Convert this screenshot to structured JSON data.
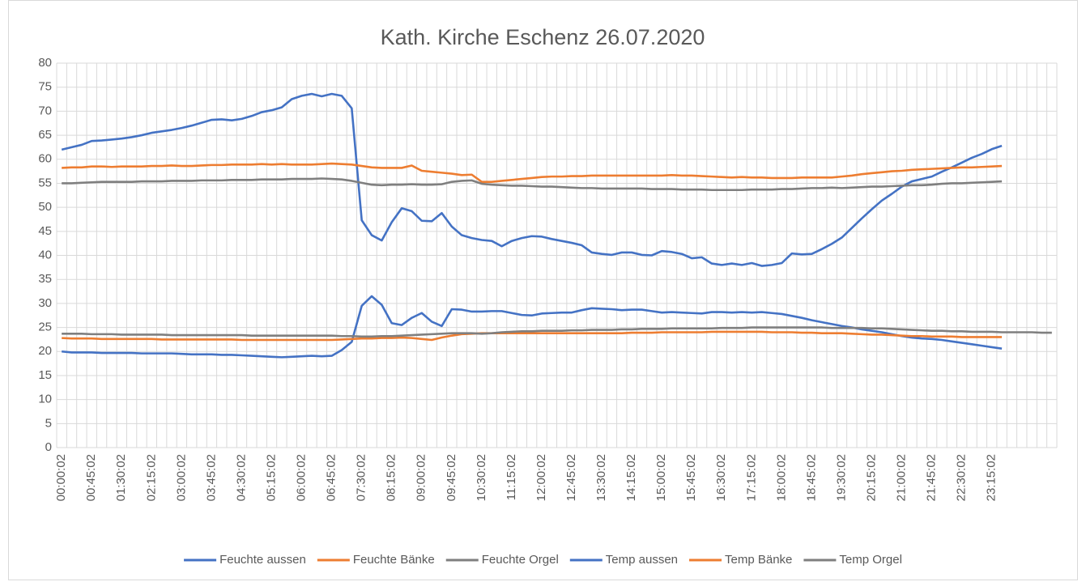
{
  "chart_data": {
    "type": "line",
    "title": "Kath. Kirche Eschenz 26.07.2020",
    "categories": [
      "00:00:02",
      null,
      null,
      "00:45:02",
      null,
      null,
      "01:30:02",
      null,
      null,
      "02:15:02",
      null,
      null,
      "03:00:02",
      null,
      null,
      "03:45:02",
      null,
      null,
      "04:30:02",
      null,
      null,
      "05:15:02",
      null,
      null,
      "06:00:02",
      null,
      null,
      "06:45:02",
      null,
      null,
      "07:30:02",
      null,
      null,
      "08:15:02",
      null,
      null,
      "09:00:02",
      null,
      null,
      "09:45:02",
      null,
      null,
      "10:30:02",
      null,
      null,
      "11:15:02",
      null,
      null,
      "12:00:02",
      null,
      null,
      "12:45:02",
      null,
      null,
      "13:30:02",
      null,
      null,
      "14:15:02",
      null,
      null,
      "15:00:02",
      null,
      null,
      "15:45:02",
      null,
      null,
      "16:30:02",
      null,
      null,
      "17:15:02",
      null,
      null,
      "18:00:02",
      null,
      null,
      "18:45:02",
      null,
      null,
      "19:30:02",
      null,
      null,
      "20:15:02",
      null,
      null,
      "21:00:02",
      null,
      null,
      "21:45:02",
      null,
      null,
      "22:30:02",
      null,
      null,
      "23:15:02",
      null,
      null,
      null,
      null,
      null,
      null
    ],
    "ylim": [
      0,
      80
    ],
    "yticks": [
      0,
      5,
      10,
      15,
      20,
      25,
      30,
      35,
      40,
      45,
      50,
      55,
      60,
      65,
      70,
      75,
      80
    ],
    "grid": true,
    "legend": "bottom",
    "series": [
      {
        "name": "Feuchte aussen",
        "color": "#4472c4",
        "values": [
          62.0,
          62.5,
          63.0,
          63.8,
          63.9,
          64.1,
          64.3,
          64.6,
          65.0,
          65.5,
          65.8,
          66.1,
          66.5,
          67.0,
          67.6,
          68.2,
          68.3,
          68.1,
          68.4,
          69.0,
          69.8,
          70.2,
          70.8,
          72.5,
          73.2,
          73.6,
          73.1,
          73.6,
          73.2,
          70.6,
          47.3,
          44.2,
          43.1,
          46.9,
          49.8,
          49.2,
          47.2,
          47.1,
          48.8,
          46.0,
          44.2,
          43.6,
          43.2,
          43.0,
          41.9,
          43.0,
          43.6,
          44.0,
          43.9,
          43.4,
          43.0,
          42.6,
          42.1,
          40.6,
          40.3,
          40.1,
          40.6,
          40.6,
          40.1,
          40.0,
          40.9,
          40.7,
          40.3,
          39.4,
          39.6,
          38.3,
          38.0,
          38.3,
          38.0,
          38.4,
          37.8,
          38.0,
          38.4,
          40.4,
          40.2,
          40.3,
          41.3,
          42.4,
          43.7,
          45.7,
          47.7,
          49.6,
          51.4,
          52.8,
          54.3,
          55.4,
          55.9,
          56.4,
          57.4,
          58.3,
          59.3,
          60.3,
          61.1,
          62.1,
          62.8,
          null,
          null,
          null,
          null,
          null
        ]
      },
      {
        "name": "Feuchte Bänke",
        "color": "#ed7d31",
        "values": [
          58.2,
          58.3,
          58.3,
          58.5,
          58.5,
          58.4,
          58.5,
          58.5,
          58.5,
          58.6,
          58.6,
          58.7,
          58.6,
          58.6,
          58.7,
          58.8,
          58.8,
          58.9,
          58.9,
          58.9,
          59.0,
          58.9,
          59.0,
          58.9,
          58.9,
          58.9,
          59.0,
          59.1,
          59.0,
          58.9,
          58.6,
          58.3,
          58.2,
          58.2,
          58.2,
          58.7,
          57.6,
          57.4,
          57.2,
          57.0,
          56.7,
          56.8,
          55.3,
          55.3,
          55.5,
          55.7,
          55.9,
          56.1,
          56.3,
          56.4,
          56.4,
          56.5,
          56.5,
          56.6,
          56.6,
          56.6,
          56.6,
          56.6,
          56.6,
          56.6,
          56.6,
          56.7,
          56.6,
          56.6,
          56.5,
          56.4,
          56.3,
          56.2,
          56.3,
          56.2,
          56.2,
          56.1,
          56.1,
          56.1,
          56.2,
          56.2,
          56.2,
          56.2,
          56.4,
          56.6,
          56.9,
          57.1,
          57.3,
          57.5,
          57.6,
          57.8,
          57.9,
          58.0,
          58.1,
          58.2,
          58.3,
          58.3,
          58.4,
          58.5,
          58.6,
          null,
          null,
          null,
          null,
          null
        ]
      },
      {
        "name": "Feuchte Orgel",
        "color": "#7f7f7f",
        "values": [
          55.0,
          55.0,
          55.1,
          55.2,
          55.3,
          55.3,
          55.3,
          55.3,
          55.4,
          55.4,
          55.4,
          55.5,
          55.5,
          55.5,
          55.6,
          55.6,
          55.6,
          55.7,
          55.7,
          55.7,
          55.8,
          55.8,
          55.8,
          55.9,
          55.9,
          55.9,
          56.0,
          55.9,
          55.8,
          55.5,
          55.1,
          54.7,
          54.6,
          54.7,
          54.7,
          54.8,
          54.7,
          54.7,
          54.8,
          55.3,
          55.5,
          55.6,
          54.9,
          54.7,
          54.6,
          54.5,
          54.5,
          54.4,
          54.3,
          54.3,
          54.2,
          54.1,
          54.0,
          54.0,
          53.9,
          53.9,
          53.9,
          53.9,
          53.9,
          53.8,
          53.8,
          53.8,
          53.7,
          53.7,
          53.7,
          53.6,
          53.6,
          53.6,
          53.6,
          53.7,
          53.7,
          53.7,
          53.8,
          53.8,
          53.9,
          54.0,
          54.0,
          54.1,
          54.0,
          54.1,
          54.2,
          54.3,
          54.3,
          54.4,
          54.5,
          54.6,
          54.6,
          54.7,
          54.9,
          55.0,
          55.0,
          55.1,
          55.2,
          55.3,
          55.4,
          null,
          null,
          null,
          null,
          null
        ]
      },
      {
        "name": "Temp aussen",
        "color": "#4472c4",
        "values": [
          20.0,
          19.8,
          19.8,
          19.8,
          19.7,
          19.7,
          19.7,
          19.7,
          19.6,
          19.6,
          19.6,
          19.6,
          19.5,
          19.4,
          19.4,
          19.4,
          19.3,
          19.3,
          19.2,
          19.1,
          19.0,
          18.9,
          18.8,
          18.9,
          19.0,
          19.1,
          19.0,
          19.1,
          20.3,
          22.0,
          29.5,
          31.5,
          29.7,
          25.9,
          25.5,
          27.0,
          28.0,
          26.2,
          25.3,
          28.8,
          28.7,
          28.3,
          28.3,
          28.4,
          28.4,
          28.0,
          27.6,
          27.5,
          27.9,
          28.0,
          28.1,
          28.1,
          28.6,
          29.0,
          28.9,
          28.8,
          28.6,
          28.7,
          28.7,
          28.4,
          28.1,
          28.2,
          28.1,
          28.0,
          27.9,
          28.2,
          28.2,
          28.1,
          28.2,
          28.1,
          28.2,
          28.0,
          27.8,
          27.4,
          27.0,
          26.5,
          26.1,
          25.7,
          25.3,
          25.0,
          24.6,
          24.3,
          24.0,
          23.6,
          23.2,
          22.9,
          22.7,
          22.6,
          22.4,
          22.1,
          21.8,
          21.5,
          21.2,
          20.9,
          20.6,
          null,
          null,
          null,
          null,
          null
        ]
      },
      {
        "name": "Temp Bänke",
        "color": "#ed7d31",
        "values": [
          22.8,
          22.7,
          22.7,
          22.7,
          22.6,
          22.6,
          22.6,
          22.6,
          22.6,
          22.6,
          22.5,
          22.5,
          22.5,
          22.5,
          22.5,
          22.5,
          22.5,
          22.5,
          22.4,
          22.4,
          22.4,
          22.4,
          22.4,
          22.4,
          22.4,
          22.4,
          22.4,
          22.4,
          22.5,
          22.6,
          22.7,
          22.7,
          22.8,
          22.8,
          22.9,
          22.8,
          22.6,
          22.4,
          22.9,
          23.3,
          23.6,
          23.7,
          23.8,
          23.8,
          23.8,
          23.8,
          23.8,
          23.8,
          23.8,
          23.8,
          23.8,
          23.8,
          23.8,
          23.8,
          23.8,
          23.8,
          23.8,
          23.9,
          23.9,
          23.9,
          24.0,
          24.0,
          24.0,
          24.0,
          24.0,
          24.1,
          24.1,
          24.1,
          24.1,
          24.1,
          24.1,
          24.0,
          24.0,
          24.0,
          23.9,
          23.9,
          23.8,
          23.8,
          23.8,
          23.7,
          23.6,
          23.5,
          23.5,
          23.4,
          23.3,
          23.2,
          23.2,
          23.1,
          23.1,
          23.1,
          23.0,
          23.0,
          23.0,
          23.0,
          23.0,
          null,
          null,
          null,
          null,
          null
        ]
      },
      {
        "name": "Temp Orgel",
        "color": "#7f7f7f",
        "values": [
          23.7,
          23.7,
          23.7,
          23.6,
          23.6,
          23.6,
          23.5,
          23.5,
          23.5,
          23.5,
          23.5,
          23.4,
          23.4,
          23.4,
          23.4,
          23.4,
          23.4,
          23.4,
          23.4,
          23.3,
          23.3,
          23.3,
          23.3,
          23.3,
          23.3,
          23.3,
          23.3,
          23.3,
          23.2,
          23.2,
          23.1,
          23.1,
          23.2,
          23.2,
          23.3,
          23.4,
          23.5,
          23.6,
          23.7,
          23.8,
          23.8,
          23.8,
          23.7,
          23.8,
          24.0,
          24.1,
          24.2,
          24.2,
          24.3,
          24.3,
          24.3,
          24.4,
          24.4,
          24.5,
          24.5,
          24.5,
          24.6,
          24.6,
          24.7,
          24.7,
          24.7,
          24.8,
          24.8,
          24.8,
          24.8,
          24.8,
          24.9,
          24.9,
          24.9,
          25.0,
          25.0,
          25.0,
          25.0,
          25.0,
          25.0,
          25.0,
          25.0,
          24.9,
          24.9,
          24.9,
          24.9,
          24.8,
          24.8,
          24.7,
          24.6,
          24.5,
          24.4,
          24.3,
          24.3,
          24.2,
          24.2,
          24.1,
          24.1,
          24.1,
          24.0,
          24.0,
          24.0,
          24.0,
          23.9,
          23.9
        ]
      }
    ]
  }
}
